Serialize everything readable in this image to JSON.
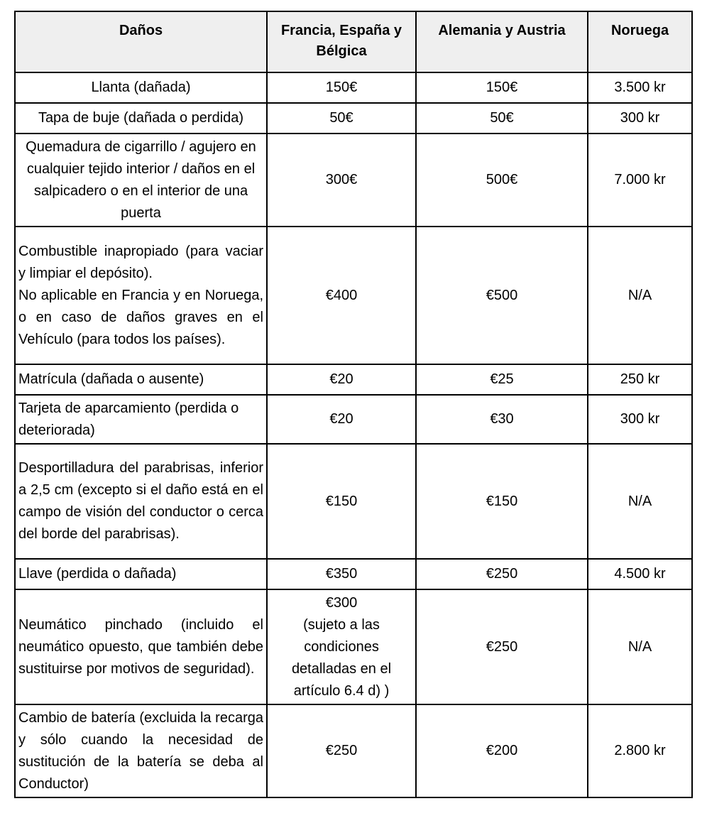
{
  "headers": [
    "Daños",
    "Francia, España y Bélgica",
    "Alemania y Austria",
    "Noruega"
  ],
  "rows": [
    {
      "damage": "Llanta (dañada)",
      "fr_es_be": "150€",
      "de_at": "150€",
      "no": "3.500 kr",
      "align": "center"
    },
    {
      "damage": "Tapa de buje (dañada o perdida)",
      "fr_es_be": "50€",
      "de_at": "50€",
      "no": "300 kr",
      "align": "center"
    },
    {
      "damage": "Quemadura de cigarrillo / agujero en cualquier tejido interior / daños en el salpicadero o en el interior de una puerta",
      "fr_es_be": "300€",
      "de_at": "500€",
      "no": "7.000 kr",
      "align": "center"
    },
    {
      "damage": "Combustible inapropiado (para vaciar y limpiar el depósito).\nNo aplicable en Francia y en Noruega, o en caso de daños graves en el Vehículo (para todos los países).",
      "fr_es_be": "€400",
      "de_at": "€500",
      "no": "N/A",
      "align": "justify"
    },
    {
      "damage": "Matrícula (dañada o ausente)",
      "fr_es_be": "€20",
      "de_at": "€25",
      "no": "250 kr",
      "align": "left"
    },
    {
      "damage": "Tarjeta de aparcamiento (perdida o deteriorada)",
      "fr_es_be": "€20",
      "de_at": "€30",
      "no": "300 kr",
      "align": "left"
    },
    {
      "damage": "Desportilladura del parabrisas, inferior a 2,5 cm (excepto si el daño está en el campo de visión del conductor o cerca del borde del parabrisas).",
      "fr_es_be": "€150",
      "de_at": "€150",
      "no": "N/A",
      "align": "justify"
    },
    {
      "damage": "Llave (perdida o dañada)",
      "fr_es_be": "€350",
      "de_at": "€250",
      "no": "4.500 kr",
      "align": "left"
    },
    {
      "damage": "Neumático pinchado (incluido el neumático opuesto, que también debe sustituirse por motivos de seguridad).",
      "fr_es_be": "€300\n(sujeto a las condiciones detalladas en el artículo 6.4 d) )",
      "de_at": "€250",
      "no": "N/A",
      "align": "justify"
    },
    {
      "damage": "Cambio de batería (excluida la recarga y sólo cuando la necesidad de sustitución de la batería se deba al Conductor)",
      "fr_es_be": "€250",
      "de_at": "€200",
      "no": "2.800 kr",
      "align": "justify"
    }
  ]
}
